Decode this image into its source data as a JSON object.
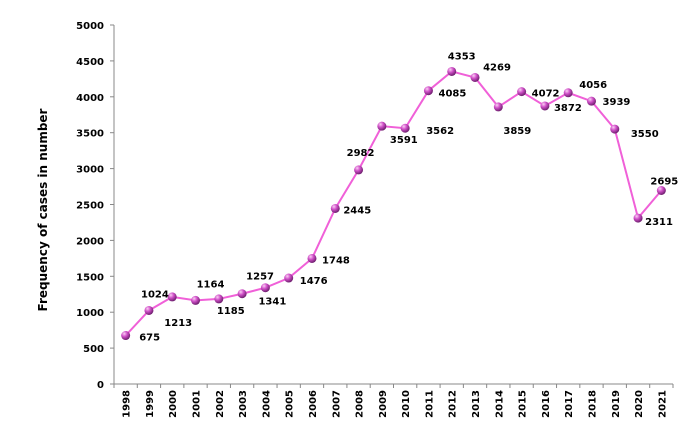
{
  "chart_data": {
    "type": "line",
    "title": "",
    "xlabel": "",
    "ylabel": "Frequency of cases in number",
    "ylim": [
      0,
      5000
    ],
    "yticks": [
      0,
      500,
      1000,
      1500,
      2000,
      2500,
      3000,
      3500,
      4000,
      4500,
      5000
    ],
    "grid": false,
    "legend": "none",
    "categories": [
      "1998",
      "1999",
      "2000",
      "2001",
      "2002",
      "2003",
      "2004",
      "2005",
      "2006",
      "2007",
      "2008",
      "2009",
      "2010",
      "2011",
      "2012",
      "2013",
      "2014",
      "2015",
      "2016",
      "2017",
      "2018",
      "2019",
      "2020",
      "2021"
    ],
    "series": [
      {
        "values": [
          675,
          1024,
          1213,
          1164,
          1185,
          1257,
          1341,
          1476,
          1748,
          2445,
          2982,
          3591,
          3562,
          4085,
          4353,
          4269,
          3859,
          4072,
          3872,
          4056,
          3939,
          3550,
          2311,
          2695
        ],
        "color": "#f060d8",
        "marker_color": "#c040b8"
      }
    ],
    "data_labels": true
  }
}
